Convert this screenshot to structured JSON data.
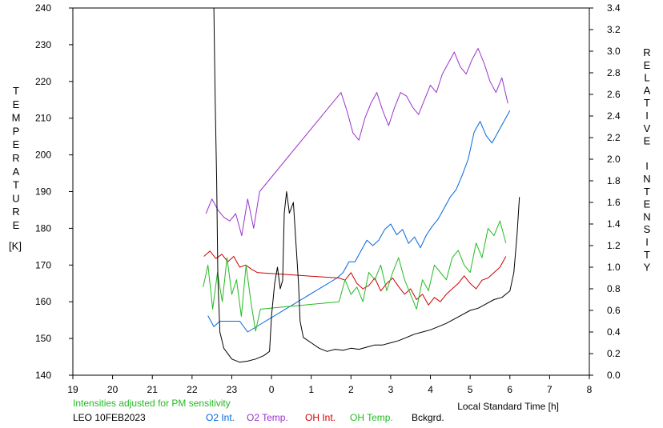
{
  "chart_data": {
    "type": "line",
    "xlabel": "Local Standard Time [h]",
    "ylabel_left": "TEMPERATURE",
    "ylabel_left_unit": "[K]",
    "ylabel_right": "RELATIVE INTENSITY",
    "xlim": [
      19,
      32
    ],
    "x_ticks": [
      19,
      20,
      21,
      22,
      23,
      24,
      25,
      26,
      27,
      28,
      29,
      30,
      31,
      32
    ],
    "x_tick_labels": [
      "19",
      "20",
      "21",
      "22",
      "23",
      "0",
      "1",
      "2",
      "3",
      "4",
      "5",
      "6",
      "7",
      "8"
    ],
    "ylim_left": [
      140,
      240
    ],
    "y_ticks_left": [
      140,
      150,
      160,
      170,
      180,
      190,
      200,
      210,
      220,
      230,
      240
    ],
    "ylim_right": [
      0,
      3.4
    ],
    "y_ticks_right": [
      "0.0",
      "0.2",
      "0.4",
      "0.6",
      "0.8",
      "1.0",
      "1.2",
      "1.4",
      "1.6",
      "1.8",
      "2.0",
      "2.2",
      "2.4",
      "2.6",
      "2.8",
      "3.0",
      "3.2",
      "3.4"
    ],
    "grid": false,
    "note": "Intensities adjusted for PM sensitivity",
    "station": "LEO 10FEB2023",
    "series": [
      {
        "name": "O2 Int.",
        "axis": "right",
        "color": "#0066dd",
        "x": [
          22.4,
          22.55,
          22.7,
          23.2,
          23.4,
          25.65,
          25.8,
          25.95,
          26.1,
          26.25,
          26.4,
          26.55,
          26.7,
          26.85,
          27.0,
          27.15,
          27.3,
          27.45,
          27.6,
          27.75,
          27.9,
          28.05,
          28.2,
          28.35,
          28.5,
          28.65,
          28.8,
          28.95,
          29.1,
          29.25,
          29.4,
          29.55,
          29.7,
          29.85,
          30.0
        ],
        "y": [
          0.55,
          0.45,
          0.5,
          0.5,
          0.4,
          0.9,
          0.95,
          1.05,
          1.05,
          1.15,
          1.25,
          1.2,
          1.25,
          1.35,
          1.4,
          1.3,
          1.35,
          1.22,
          1.28,
          1.18,
          1.3,
          1.38,
          1.45,
          1.55,
          1.65,
          1.72,
          1.85,
          2.0,
          2.25,
          2.35,
          2.22,
          2.15,
          2.25,
          2.35,
          2.45
        ]
      },
      {
        "name": "O2 Temp.",
        "axis": "left",
        "color": "#9933cc",
        "x": [
          22.35,
          22.5,
          22.65,
          22.8,
          22.95,
          23.1,
          23.25,
          23.4,
          23.55,
          23.7,
          25.75,
          25.9,
          26.05,
          26.2,
          26.35,
          26.5,
          26.65,
          26.8,
          26.95,
          27.1,
          27.25,
          27.4,
          27.55,
          27.7,
          27.85,
          28.0,
          28.15,
          28.3,
          28.45,
          28.6,
          28.75,
          28.9,
          29.05,
          29.2,
          29.35,
          29.5,
          29.65,
          29.8,
          29.95
        ],
        "y": [
          184,
          188,
          185,
          183,
          182,
          184,
          178,
          188,
          180,
          190,
          217,
          212,
          206,
          204,
          210,
          214,
          217,
          212,
          208,
          213,
          217,
          216,
          213,
          211,
          215,
          219,
          217,
          222,
          225,
          228,
          224,
          222,
          226,
          229,
          225,
          220,
          217,
          221,
          214
        ]
      },
      {
        "name": "OH Int.",
        "axis": "right",
        "color": "#cc0000",
        "x": [
          22.3,
          22.45,
          22.6,
          22.75,
          22.9,
          23.05,
          23.2,
          23.35,
          23.5,
          23.65,
          25.7,
          25.85,
          26.0,
          26.15,
          26.3,
          26.45,
          26.6,
          26.75,
          26.9,
          27.05,
          27.2,
          27.35,
          27.5,
          27.65,
          27.8,
          27.95,
          28.1,
          28.25,
          28.4,
          28.55,
          28.7,
          28.85,
          29.0,
          29.15,
          29.3,
          29.45,
          29.6,
          29.75,
          29.9
        ],
        "y": [
          1.1,
          1.15,
          1.08,
          1.12,
          1.05,
          1.1,
          1.0,
          1.02,
          0.98,
          0.95,
          0.9,
          0.88,
          0.95,
          0.85,
          0.8,
          0.83,
          0.9,
          0.78,
          0.85,
          0.9,
          0.82,
          0.75,
          0.8,
          0.7,
          0.75,
          0.65,
          0.72,
          0.68,
          0.75,
          0.8,
          0.85,
          0.92,
          0.85,
          0.8,
          0.88,
          0.9,
          0.95,
          1.0,
          1.1
        ]
      },
      {
        "name": "OH Temp.",
        "axis": "left",
        "color": "#22bb22",
        "x": [
          22.28,
          22.4,
          22.52,
          22.64,
          22.76,
          22.88,
          23.0,
          23.12,
          23.24,
          23.36,
          23.48,
          23.6,
          23.72,
          25.7,
          25.85,
          26.0,
          26.15,
          26.3,
          26.45,
          26.6,
          26.75,
          26.9,
          27.05,
          27.2,
          27.35,
          27.5,
          27.65,
          27.8,
          27.95,
          28.1,
          28.25,
          28.4,
          28.55,
          28.7,
          28.85,
          29.0,
          29.15,
          29.3,
          29.45,
          29.6,
          29.75,
          29.9
        ],
        "y": [
          164,
          170,
          158,
          168,
          160,
          172,
          162,
          166,
          156,
          170,
          160,
          152,
          158,
          160,
          166,
          162,
          164,
          160,
          168,
          166,
          170,
          163,
          168,
          172,
          166,
          162,
          158,
          166,
          163,
          170,
          168,
          166,
          172,
          174,
          170,
          168,
          176,
          172,
          180,
          178,
          182,
          176
        ]
      },
      {
        "name": "Bckgrd.",
        "axis": "right",
        "color": "#000000",
        "x": [
          22.55,
          22.58,
          22.62,
          22.65,
          22.7,
          22.8,
          23.0,
          23.2,
          23.4,
          23.6,
          23.8,
          23.95,
          24.0,
          24.08,
          24.15,
          24.22,
          24.28,
          24.32,
          24.38,
          24.45,
          24.55,
          24.62,
          24.68,
          24.72,
          24.8,
          25.0,
          25.2,
          25.4,
          25.6,
          25.8,
          26.0,
          26.2,
          26.4,
          26.6,
          26.8,
          27.0,
          27.2,
          27.4,
          27.6,
          27.8,
          28.0,
          28.2,
          28.4,
          28.6,
          28.8,
          29.0,
          29.2,
          29.4,
          29.6,
          29.8,
          30.0,
          30.1,
          30.18,
          30.24
        ],
        "y": [
          3.4,
          2.6,
          1.8,
          0.9,
          0.4,
          0.25,
          0.15,
          0.12,
          0.13,
          0.15,
          0.18,
          0.22,
          0.55,
          0.85,
          1.0,
          0.8,
          0.88,
          1.5,
          1.7,
          1.5,
          1.6,
          1.2,
          0.85,
          0.5,
          0.35,
          0.3,
          0.25,
          0.22,
          0.24,
          0.23,
          0.25,
          0.24,
          0.26,
          0.28,
          0.28,
          0.3,
          0.32,
          0.35,
          0.38,
          0.4,
          0.42,
          0.45,
          0.48,
          0.52,
          0.56,
          0.6,
          0.62,
          0.66,
          0.7,
          0.72,
          0.78,
          0.95,
          1.3,
          1.65
        ]
      }
    ]
  }
}
